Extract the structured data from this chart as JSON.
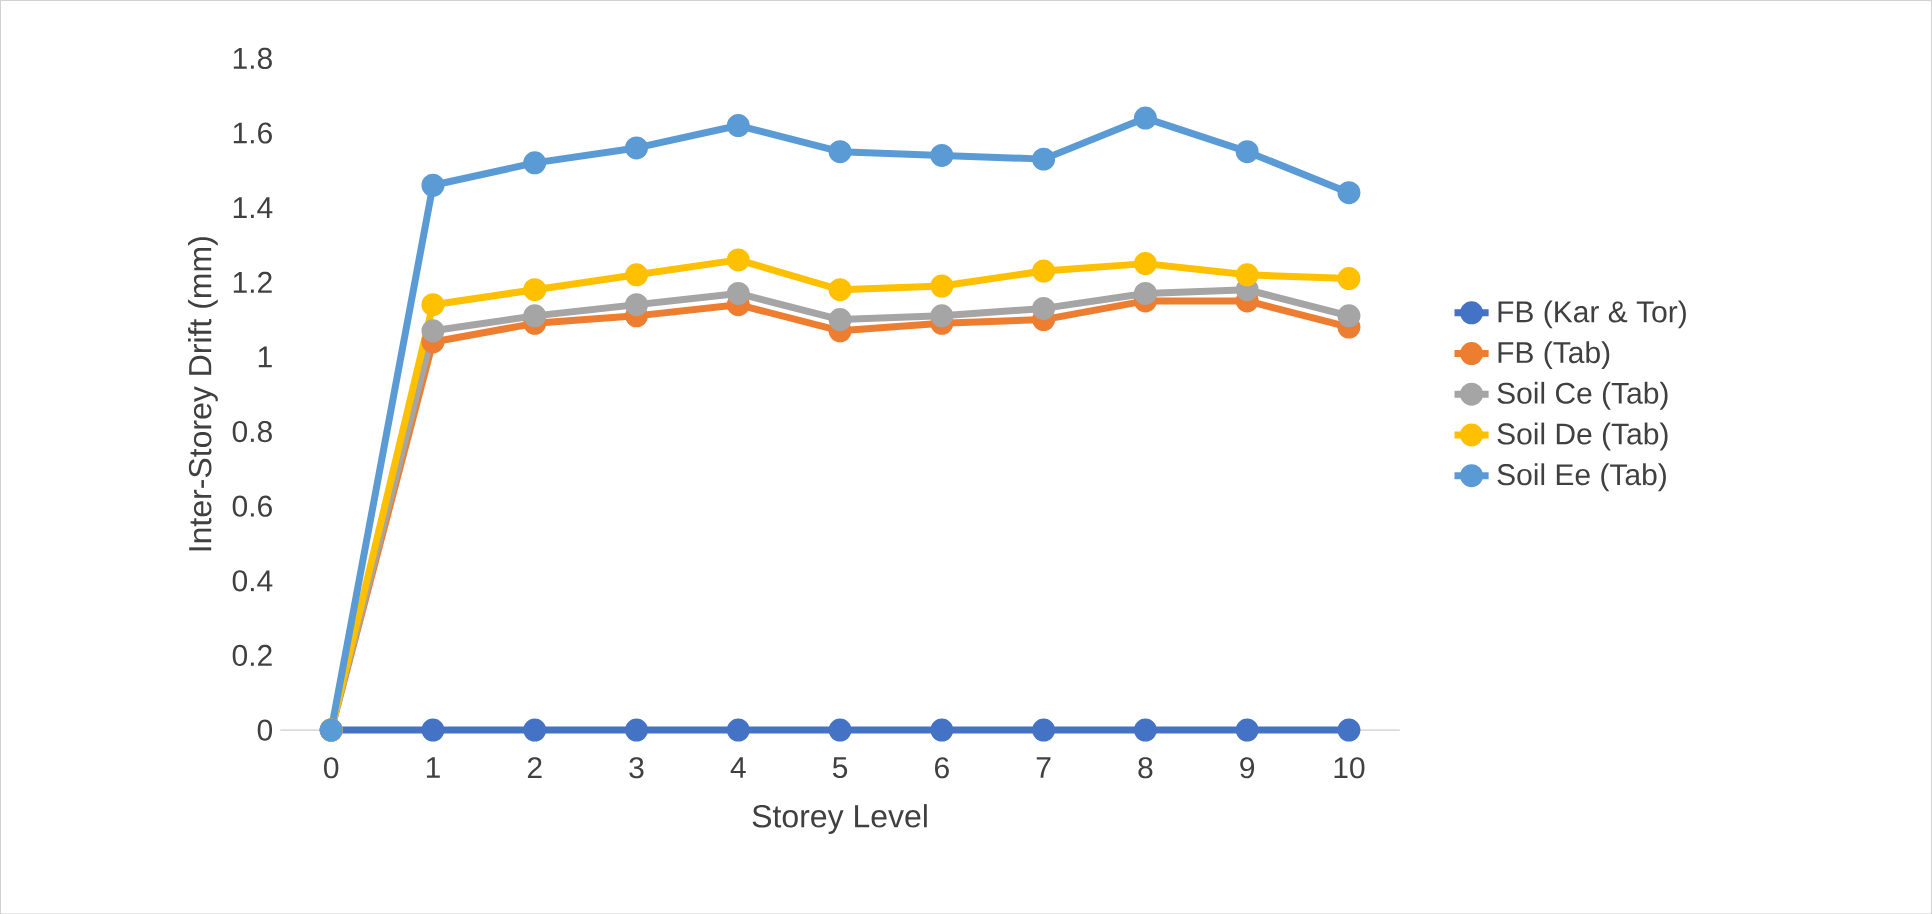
{
  "chart_data": {
    "type": "line",
    "xlabel": "Storey Level",
    "ylabel": "Inter-Storey Drift (mm)",
    "categories": [
      "0",
      "1",
      "2",
      "3",
      "4",
      "5",
      "6",
      "7",
      "8",
      "9",
      "10"
    ],
    "ylim": [
      0,
      1.8
    ],
    "yticks": [
      {
        "value": 0,
        "label": "0"
      },
      {
        "value": 0.2,
        "label": "0.2"
      },
      {
        "value": 0.4,
        "label": "0.4"
      },
      {
        "value": 0.6,
        "label": "0.6"
      },
      {
        "value": 0.8,
        "label": "0.8"
      },
      {
        "value": 1,
        "label": "1"
      },
      {
        "value": 1.2,
        "label": "1.2"
      },
      {
        "value": 1.4,
        "label": "1.4"
      },
      {
        "value": 1.6,
        "label": "1.6"
      },
      {
        "value": 1.8,
        "label": "1.8"
      }
    ],
    "legend": "right",
    "marker": "circle",
    "line_style": "solid",
    "grid": false,
    "series": [
      {
        "name": "FB (Kar & Tor)",
        "color": "#4472c4",
        "values": [
          0,
          0,
          0,
          0,
          0,
          0,
          0,
          0,
          0,
          0,
          0
        ]
      },
      {
        "name": "FB (Tab)",
        "color": "#ed7d31",
        "values": [
          0,
          1.04,
          1.09,
          1.11,
          1.14,
          1.07,
          1.09,
          1.1,
          1.15,
          1.15,
          1.08
        ]
      },
      {
        "name": "Soil Ce (Tab)",
        "color": "#a5a5a5",
        "values": [
          0,
          1.07,
          1.11,
          1.14,
          1.17,
          1.1,
          1.11,
          1.13,
          1.17,
          1.18,
          1.11
        ]
      },
      {
        "name": "Soil De (Tab)",
        "color": "#ffc000",
        "values": [
          0,
          1.14,
          1.18,
          1.22,
          1.26,
          1.18,
          1.19,
          1.23,
          1.25,
          1.22,
          1.21
        ]
      },
      {
        "name": "Soil Ee (Tab)",
        "color": "#5b9bd5",
        "values": [
          0,
          1.46,
          1.52,
          1.56,
          1.62,
          1.55,
          1.54,
          1.53,
          1.64,
          1.55,
          1.44
        ]
      }
    ]
  }
}
